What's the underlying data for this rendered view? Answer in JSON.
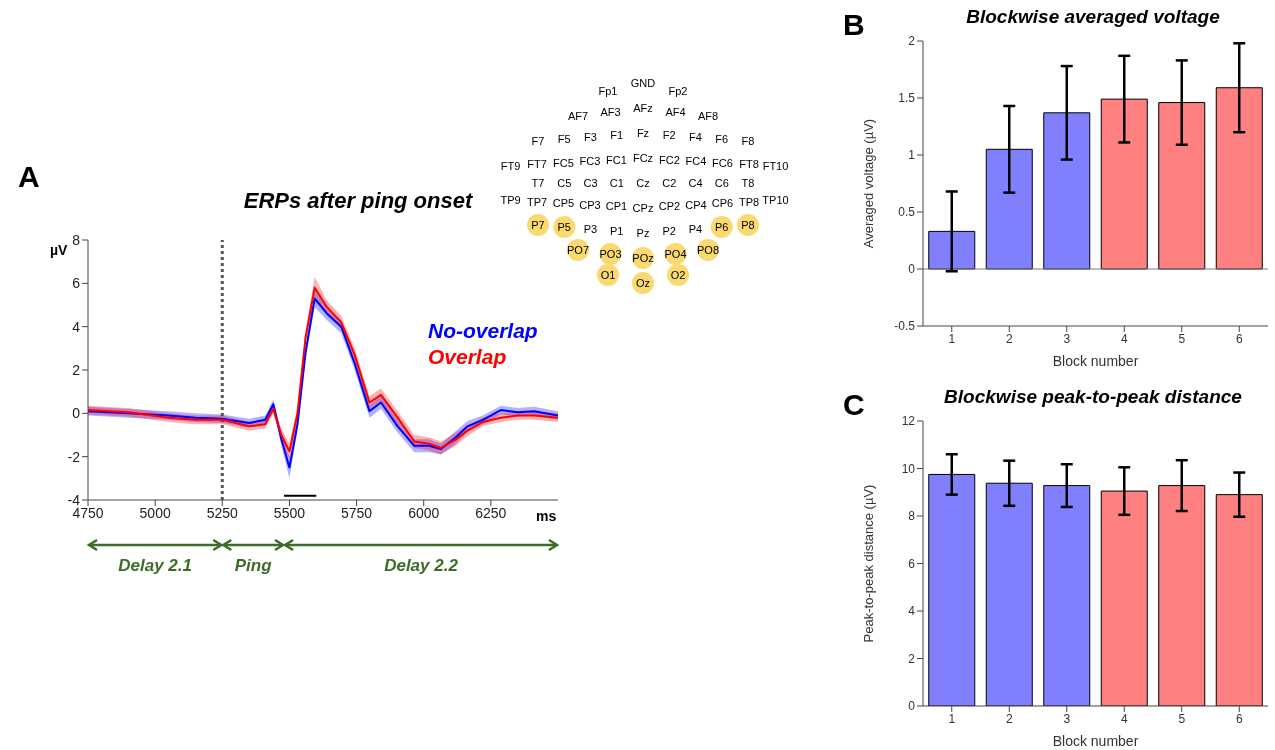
{
  "chart_data": [
    {
      "type": "line",
      "title": "ERPs after ping onset",
      "xlabel": "ms",
      "ylabel": "µV",
      "annotations": [
        "A",
        "Delay 2.1",
        "Ping",
        "Delay 2.2"
      ],
      "legend": "right",
      "xlim": [
        4750,
        6500
      ],
      "xticks": [
        4750,
        5000,
        5250,
        5500,
        5750,
        6000,
        6250
      ],
      "ylim": [
        -4,
        8
      ],
      "yticks": [
        -4,
        -2,
        0,
        2,
        4,
        6,
        8
      ],
      "x": [
        4750,
        4900,
        5050,
        5150,
        5250,
        5350,
        5410,
        5440,
        5470,
        5500,
        5530,
        5560,
        5594,
        5640,
        5693,
        5743,
        5798,
        5841,
        5903,
        5965,
        6020,
        6064,
        6120,
        6163,
        6220,
        6287,
        6350,
        6411,
        6500
      ],
      "series": [
        {
          "name": "No-overlap",
          "color": "#0000ff",
          "values": [
            0.1,
            0,
            -0.1,
            -0.2,
            -0.25,
            -0.45,
            -0.3,
            0.42,
            -1.2,
            -2.5,
            -0.5,
            2.8,
            5.3,
            4.6,
            4.0,
            2.3,
            0.1,
            0.5,
            -0.6,
            -1.5,
            -1.5,
            -1.65,
            -1.1,
            -0.6,
            -0.3,
            0.15,
            0.05,
            0.1,
            -0.1
          ],
          "lower": [
            -0.1,
            -0.2,
            -0.3,
            -0.4,
            -0.45,
            -0.65,
            -0.5,
            0.2,
            -1.5,
            -3.0,
            -0.8,
            2.5,
            4.9,
            4.3,
            3.7,
            2.0,
            -0.2,
            0.2,
            -0.9,
            -1.8,
            -1.8,
            -1.9,
            -1.4,
            -0.85,
            -0.5,
            -0.05,
            -0.15,
            -0.1,
            -0.3
          ],
          "upper": [
            0.3,
            0.2,
            0.1,
            0,
            -0.05,
            -0.25,
            -0.1,
            0.64,
            -0.9,
            -2.0,
            -0.2,
            3.1,
            5.7,
            4.9,
            4.3,
            2.6,
            0.4,
            0.8,
            -0.3,
            -1.2,
            -1.2,
            -1.4,
            -0.8,
            -0.35,
            -0.1,
            0.35,
            0.25,
            0.3,
            0.1
          ]
        },
        {
          "name": "Overlap",
          "color": "#ff0000",
          "values": [
            0.15,
            0.05,
            -0.2,
            -0.3,
            -0.3,
            -0.6,
            -0.5,
            0.2,
            -1.0,
            -1.75,
            0,
            3.5,
            5.8,
            4.9,
            4.2,
            2.7,
            0.5,
            0.85,
            -0.2,
            -1.3,
            -1.4,
            -1.6,
            -1.2,
            -0.8,
            -0.4,
            -0.2,
            -0.1,
            -0.1,
            -0.2
          ],
          "lower": [
            -0.05,
            -0.15,
            -0.4,
            -0.5,
            -0.5,
            -0.8,
            -0.7,
            0,
            -1.3,
            -2.1,
            -0.3,
            3.2,
            5.4,
            4.6,
            3.9,
            2.4,
            0.2,
            0.55,
            -0.5,
            -1.6,
            -1.7,
            -1.9,
            -1.5,
            -1.05,
            -0.6,
            -0.4,
            -0.3,
            -0.3,
            -0.4
          ],
          "upper": [
            0.35,
            0.25,
            0,
            -0.1,
            -0.1,
            -0.4,
            -0.3,
            0.4,
            -0.7,
            -1.4,
            0.3,
            3.8,
            6.3,
            5.2,
            4.5,
            3.0,
            0.8,
            1.15,
            0.1,
            -1.0,
            -1.1,
            -1.3,
            -0.9,
            -0.55,
            -0.2,
            0,
            0.1,
            0.1,
            0
          ]
        },
        {
          "color": "#000000",
          "x": [
            5480,
            5600
          ],
          "values": [
            -3.8,
            -3.8
          ]
        }
      ],
      "ref_lines": [
        {
          "axis": "x",
          "value": 5250,
          "color": "#555555",
          "line_style": "dotted"
        }
      ]
    },
    {
      "type": "other",
      "categories": [
        "Fp1",
        "GND",
        "Fp2",
        "AF7",
        "AF3",
        "AFz",
        "AF4",
        "AF8",
        "F7",
        "F5",
        "F3",
        "F1",
        "Fz",
        "F2",
        "F4",
        "F6",
        "F8",
        "FT9",
        "FT7",
        "FC5",
        "FC3",
        "FC1",
        "FCz",
        "FC2",
        "FC4",
        "FC6",
        "FT8",
        "FT10",
        "T7",
        "C5",
        "C3",
        "C1",
        "Cz",
        "C2",
        "C4",
        "C6",
        "T8",
        "TP9",
        "TP7",
        "CP5",
        "CP3",
        "CP1",
        "CPz",
        "CP2",
        "CP4",
        "CP6",
        "TP8",
        "TP10",
        "P7",
        "P5",
        "P3",
        "P1",
        "Pz",
        "P2",
        "P4",
        "P6",
        "P8",
        "PO7",
        "PO3",
        "POz",
        "PO4",
        "PO8",
        "O1",
        "Oz",
        "O2"
      ],
      "colors": [
        null,
        null,
        null,
        null,
        null,
        null,
        null,
        null,
        null,
        null,
        null,
        null,
        null,
        null,
        null,
        null,
        null,
        null,
        null,
        null,
        null,
        null,
        null,
        null,
        null,
        null,
        null,
        null,
        null,
        null,
        null,
        null,
        null,
        null,
        null,
        null,
        null,
        null,
        null,
        null,
        null,
        null,
        null,
        null,
        null,
        null,
        null,
        null,
        "#fbd971",
        "#fbd971",
        null,
        null,
        null,
        null,
        null,
        "#fbd971",
        "#fbd971",
        "#fbd971",
        "#fbd971",
        "#fbd971",
        "#fbd971",
        "#fbd971",
        "#fbd971",
        "#fbd971",
        "#fbd971"
      ]
    },
    {
      "type": "bar",
      "title": "Blockwise averaged voltage",
      "xlabel": "Block number",
      "ylabel": "Averaged voltage (µV)",
      "annotations": [
        "B"
      ],
      "categories": [
        "1",
        "2",
        "3",
        "4",
        "5",
        "6"
      ],
      "values": [
        0.33,
        1.05,
        1.37,
        1.49,
        1.46,
        1.59
      ],
      "errors": [
        0.35,
        0.38,
        0.41,
        0.38,
        0.37,
        0.39
      ],
      "colors": [
        "#8080ff",
        "#8080ff",
        "#8080ff",
        "#ff8080",
        "#ff8080",
        "#ff8080"
      ],
      "ylim": [
        -0.5,
        2
      ],
      "yticks": [
        -0.5,
        0,
        0.5,
        1,
        1.5,
        2
      ],
      "ref_lines": [
        {
          "axis": "y",
          "value": 0,
          "color": "#808080"
        }
      ]
    },
    {
      "type": "bar",
      "title": "Blockwise peak-to-peak distance",
      "xlabel": "Block number",
      "ylabel": "Peak-to-peak distance (µV)",
      "annotations": [
        "C"
      ],
      "categories": [
        "1",
        "2",
        "3",
        "4",
        "5",
        "6"
      ],
      "values": [
        9.75,
        9.38,
        9.28,
        9.05,
        9.28,
        8.9
      ],
      "errors": [
        0.85,
        0.95,
        0.9,
        1.0,
        1.07,
        0.93
      ],
      "colors": [
        "#8080ff",
        "#8080ff",
        "#8080ff",
        "#ff8080",
        "#ff8080",
        "#ff8080"
      ],
      "ylim": [
        0,
        12
      ],
      "yticks": [
        0,
        2,
        4,
        6,
        8,
        10,
        12
      ]
    }
  ]
}
